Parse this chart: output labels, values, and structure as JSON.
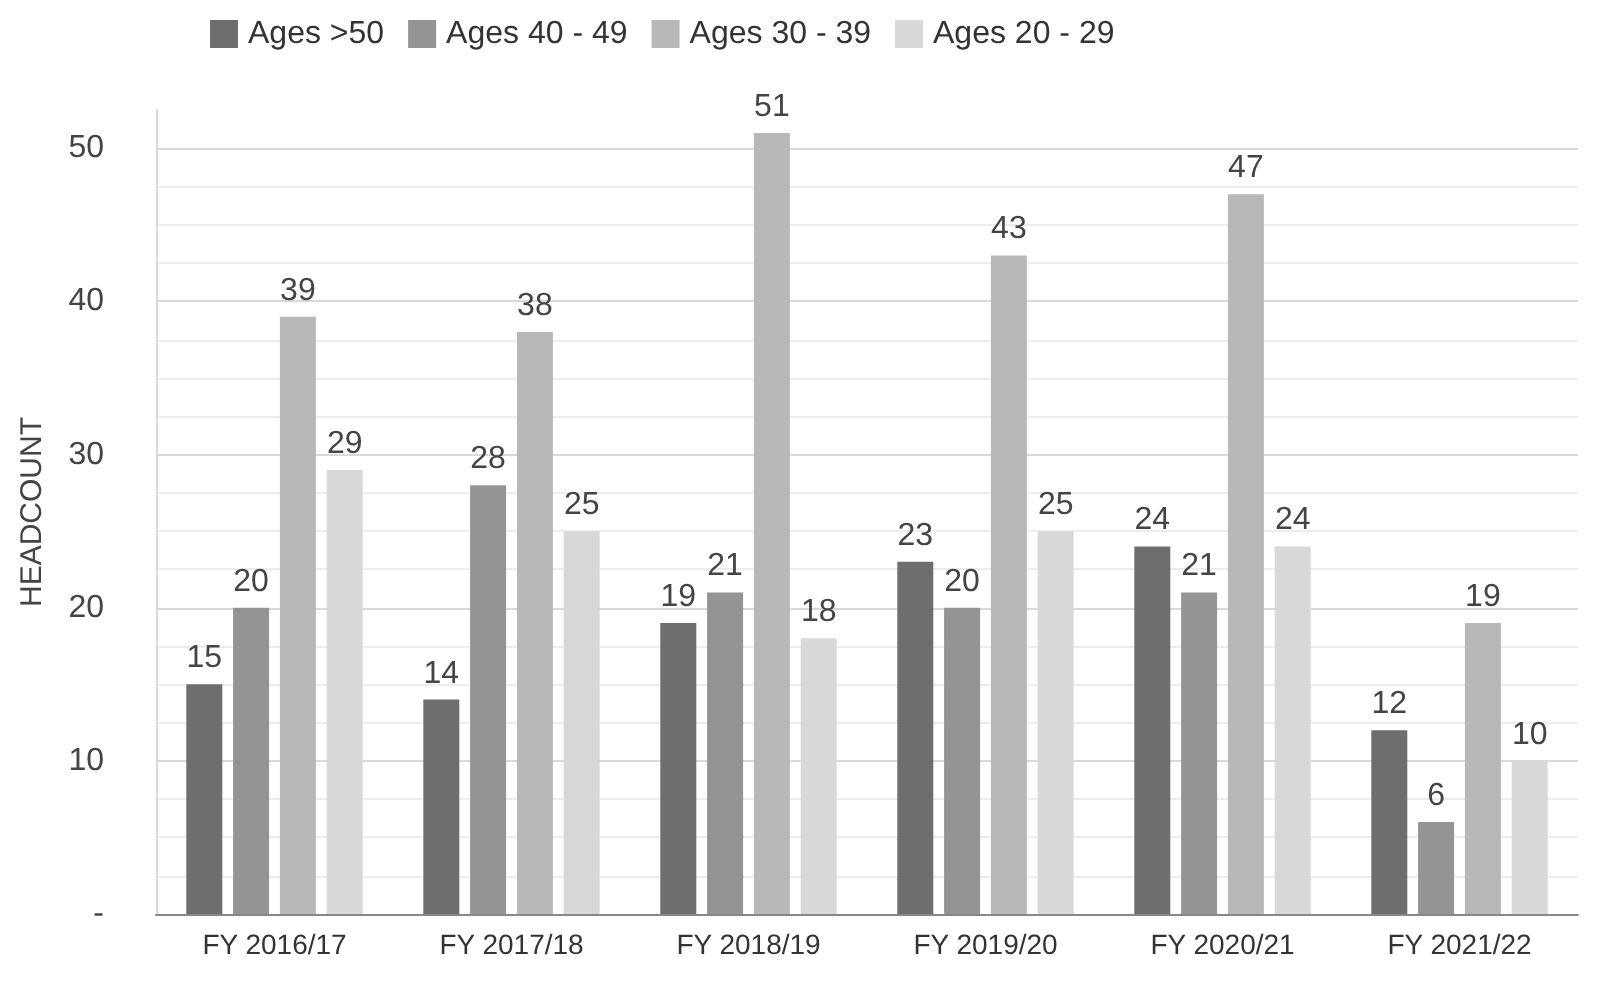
{
  "chart_data": {
    "type": "bar",
    "ylabel": "HEADCOUNT",
    "categories": [
      "FY 2016/17",
      "FY 2017/18",
      "FY 2018/19",
      "FY 2019/20",
      "FY 2020/21",
      "FY 2021/22"
    ],
    "series": [
      {
        "name": "Ages >50",
        "color": "#6e6e6e",
        "values": [
          15,
          14,
          19,
          23,
          24,
          12
        ]
      },
      {
        "name": "Ages 40 - 49",
        "color": "#949494",
        "values": [
          20,
          28,
          21,
          20,
          21,
          6
        ]
      },
      {
        "name": "Ages 30 - 39",
        "color": "#b8b8b8",
        "values": [
          39,
          38,
          51,
          43,
          47,
          19
        ]
      },
      {
        "name": "Ages 20 - 29",
        "color": "#d8d8d8",
        "values": [
          29,
          25,
          18,
          25,
          24,
          10
        ]
      }
    ],
    "ylim": [
      0,
      52.5
    ],
    "yticks": [
      {
        "value": 0,
        "label": "-"
      },
      10,
      20,
      30,
      40,
      50
    ],
    "grid": "y",
    "legend": "top left",
    "data_labels": true
  }
}
